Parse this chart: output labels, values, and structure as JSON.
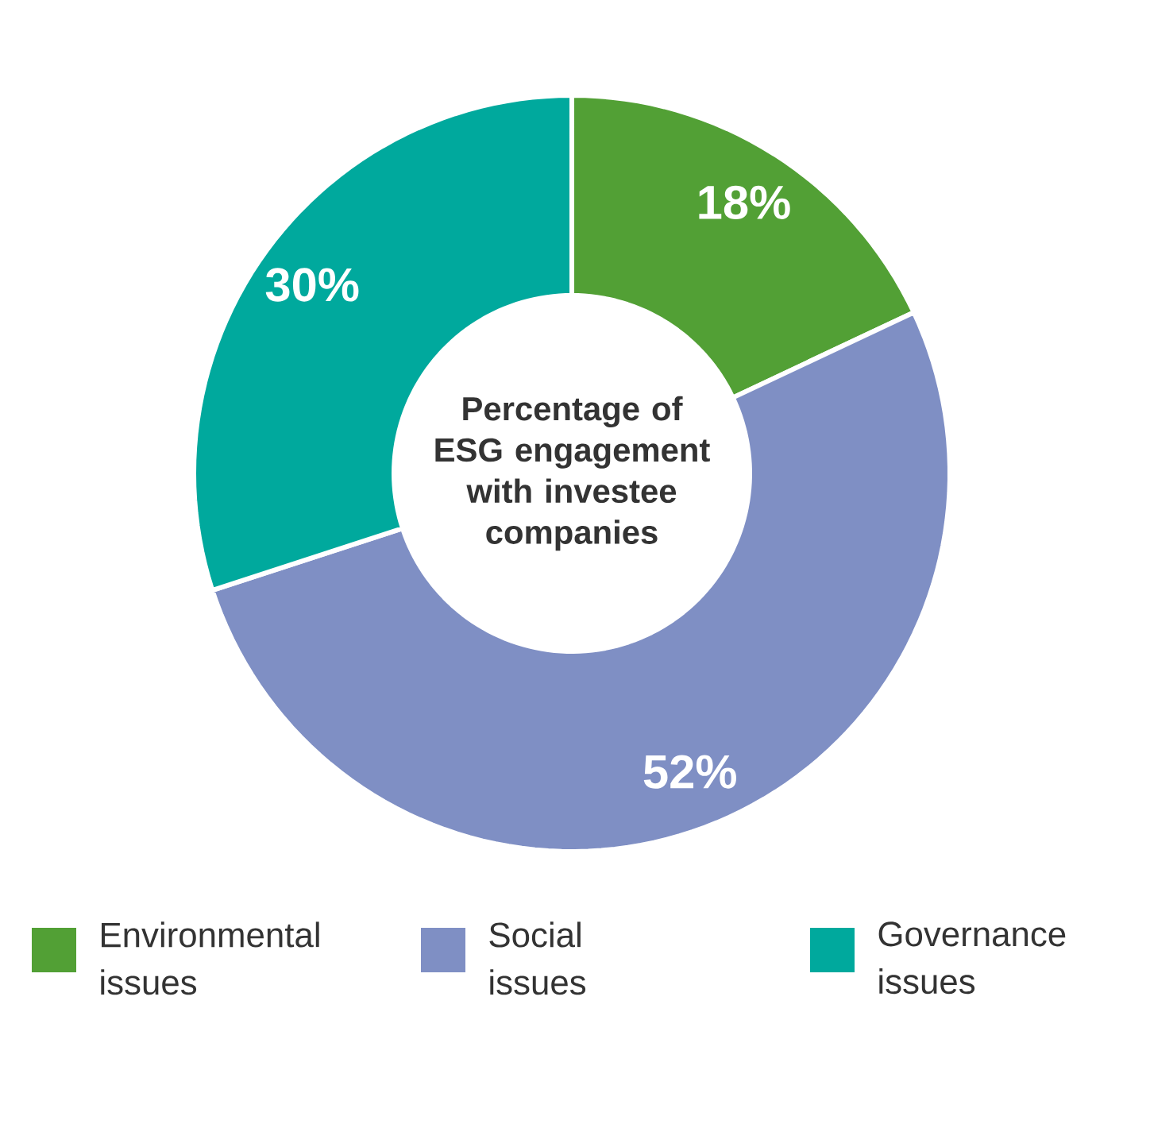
{
  "chart_data": {
    "type": "donut",
    "title": "Percentage of ESG engagement with investee companies",
    "categories": [
      "Environmental issues",
      "Social issues",
      "Governance issues"
    ],
    "values": [
      18,
      52,
      30
    ],
    "colors": [
      "#52a035",
      "#7f8fc4",
      "#00a99d"
    ],
    "value_labels": [
      "18%",
      "52%",
      "30%"
    ],
    "legend": "bottom"
  }
}
